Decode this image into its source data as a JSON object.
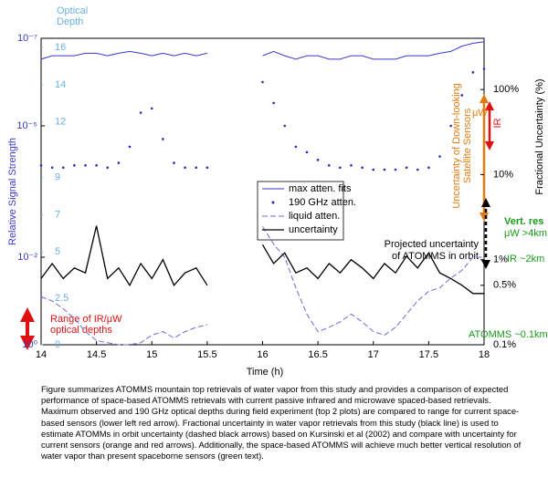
{
  "chart_data": {
    "type": "line",
    "ylabel": "Relative Signal Strength",
    "y2label": "Fractional Uncertainty (%)",
    "xlabel": "Time (h)",
    "od_label": [
      "Optical",
      "Depth"
    ],
    "x": [
      14.0,
      14.1,
      14.2,
      14.3,
      14.4,
      14.5,
      14.6,
      14.7,
      14.8,
      14.9,
      15.0,
      15.1,
      15.2,
      15.3,
      15.4,
      15.5,
      15.75,
      16.0,
      16.1,
      16.2,
      16.3,
      16.4,
      16.5,
      16.6,
      16.7,
      16.8,
      16.9,
      17.0,
      17.1,
      17.2,
      17.3,
      17.4,
      17.5,
      17.6,
      17.7,
      17.8,
      17.9,
      18.0
    ],
    "xlim": [
      14,
      18
    ],
    "xticks": [
      14,
      14.5,
      15,
      15.5,
      16,
      16.5,
      17,
      17.5,
      18
    ],
    "ylim": [
      1,
      1e-07
    ],
    "yscale": "log",
    "yticks": [
      {
        "value": 1e-07,
        "label": "10⁻⁷"
      },
      {
        "value": 1e-05,
        "label": "10⁻⁵"
      },
      {
        "value": 0.01,
        "label": "10⁻²"
      },
      {
        "value": 1,
        "label": "10⁰"
      }
    ],
    "y2lim": [
      0.1,
      400
    ],
    "y2scale": "log",
    "y2ticks": [
      {
        "value": 100,
        "label": "100%"
      },
      {
        "value": 10,
        "label": "10%"
      },
      {
        "value": 1,
        "label": "1%"
      },
      {
        "value": 0.5,
        "label": "0.5%"
      },
      {
        "value": 0.1,
        "label": "0.1%"
      }
    ],
    "od_lim": [
      0,
      16.5
    ],
    "od_ticks": [
      16,
      14,
      12,
      9,
      7,
      5,
      2.5,
      0
    ],
    "series": [
      {
        "name": "max atten. fits",
        "style": "line",
        "color": "#3a3ac8",
        "values": [
          3e-07,
          2.5e-07,
          2.5e-07,
          2.5e-07,
          2.2e-07,
          2.2e-07,
          2.5e-07,
          2.2e-07,
          2e-07,
          2.2e-07,
          2.5e-07,
          2.2e-07,
          2.5e-07,
          2.2e-07,
          2.5e-07,
          2.2e-07,
          null,
          2.5e-07,
          2e-07,
          2.5e-07,
          3e-07,
          2.5e-07,
          2.5e-07,
          3e-07,
          3e-07,
          2.5e-07,
          2.5e-07,
          3e-07,
          3e-07,
          3e-07,
          2.5e-07,
          2.5e-07,
          2.5e-07,
          2.2e-07,
          2e-07,
          1.5e-07,
          1.3e-07,
          1.2e-07
        ]
      },
      {
        "name": "190 GHz atten.",
        "style": "dots",
        "color": "#2a2ab8",
        "values": [
          8e-05,
          9e-05,
          9e-05,
          8e-05,
          8e-05,
          8e-05,
          9e-05,
          7e-05,
          3e-05,
          5e-06,
          4e-06,
          2e-05,
          7e-05,
          9e-05,
          9e-05,
          9e-05,
          null,
          1e-06,
          3e-06,
          1e-05,
          3e-05,
          4e-05,
          6e-05,
          8e-05,
          9e-05,
          8e-05,
          9e-05,
          0.0001,
          0.0001,
          0.0001,
          9e-05,
          0.0001,
          9e-05,
          5e-05,
          1e-05,
          2e-06,
          6e-07,
          5e-07
        ]
      },
      {
        "name": "liquid atten.",
        "style": "dashed",
        "color": "#6a6ad8",
        "values": [
          0.08,
          0.1,
          0.15,
          0.25,
          0.5,
          0.8,
          0.9,
          1,
          1,
          0.9,
          0.6,
          0.5,
          0.7,
          0.5,
          0.4,
          0.35,
          null,
          0.002,
          0.005,
          0.01,
          0.05,
          0.2,
          0.5,
          0.4,
          0.3,
          0.2,
          0.3,
          0.5,
          0.6,
          0.4,
          0.2,
          0.1,
          0.06,
          0.05,
          0.03,
          0.02,
          0.01,
          0.01
        ]
      },
      {
        "name": "uncertainty",
        "style": "line",
        "color": "#000000",
        "axis": "y2",
        "values": [
          0.6,
          0.9,
          0.6,
          0.8,
          0.7,
          2.5,
          0.6,
          0.8,
          0.5,
          0.9,
          0.6,
          1.0,
          0.5,
          0.7,
          0.8,
          0.5,
          null,
          1.5,
          0.9,
          1.2,
          0.7,
          0.8,
          0.6,
          0.9,
          0.7,
          1.0,
          0.8,
          0.6,
          0.9,
          0.7,
          1.1,
          0.8,
          1.2,
          0.7,
          0.6,
          0.5,
          0.4,
          0.4
        ]
      }
    ],
    "annotations": [
      "Range of IR/μW",
      "optical depths",
      "μW",
      "IR",
      "Uncertainty of Down-looking",
      "Satellite Sensors",
      "Vert. res",
      "μW >4km",
      "IR ~2km",
      "ATOMMS ~0.1km",
      "Projected uncertainty",
      "of ATOMMS in orbit"
    ]
  },
  "caption": "Figure summarizes ATOMMS mountain top retrievals of water vapor from this study and provides a comparison of expected performance of space-based ATOMMS retrievals with current passive infrared and microwave spaced-based retrievals. Maximum observed and 190 GHz optical depths during field experiment (top 2 plots) are compared to range for current space-based sensors (lower left red arrow). Fractional uncertainty in water vapor retrievals from this study (black line) is used to estimate ATOMMs in orbit uncertainty (dashed black arrows) based on Kursinski et al (2002) and compare with uncertainty for current sensors (orange and red arrows). Additionally, the space-based ATOMMS will achieve much better vertical resolution of water vapor than present spaceborne sensors (green text)."
}
